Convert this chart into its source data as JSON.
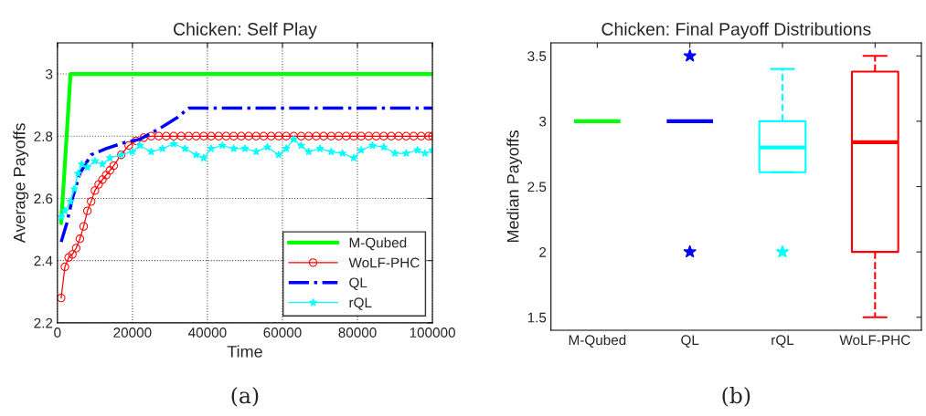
{
  "chart_data": [
    {
      "type": "line",
      "title": "Chicken: Self Play",
      "xlabel": "Time",
      "ylabel": "Average Payoffs",
      "xlim": [
        0,
        100000
      ],
      "xticks": [
        0,
        20000,
        40000,
        60000,
        80000,
        100000
      ],
      "ylim": [
        2.2,
        3.1
      ],
      "yticks": [
        2.2,
        2.4,
        2.6,
        2.8,
        3
      ],
      "grid": true,
      "legend": "bottom right",
      "annotations": [
        "(a)"
      ],
      "series": [
        {
          "name": "M-Qubed",
          "color": "#00ff00",
          "marker": "none",
          "line_style": "solid",
          "x": [
            1000,
            3500,
            100000
          ],
          "values": [
            2.52,
            3.0,
            3.0
          ]
        },
        {
          "name": "WoLF-PHC",
          "color": "#ff0000",
          "marker": "circle",
          "line_style": "solid",
          "x": [
            1000,
            2000,
            3000,
            4000,
            5000,
            6000,
            7000,
            8000,
            9000,
            10000,
            11000,
            12000,
            13000,
            14000,
            15000,
            17000,
            19000,
            21000,
            23000,
            25000,
            27000,
            29000,
            31000,
            33000,
            35000,
            37000,
            39000,
            41000,
            43000,
            45000,
            47000,
            49000,
            51000,
            53000,
            55000,
            57000,
            59000,
            61000,
            63000,
            65000,
            67000,
            69000,
            71000,
            73000,
            75000,
            77000,
            79000,
            81000,
            83000,
            85000,
            87000,
            89000,
            91000,
            93000,
            95000,
            97000,
            99000,
            100000
          ],
          "values": [
            2.28,
            2.38,
            2.41,
            2.42,
            2.44,
            2.47,
            2.51,
            2.56,
            2.59,
            2.625,
            2.645,
            2.66,
            2.675,
            2.69,
            2.705,
            2.74,
            2.77,
            2.785,
            2.795,
            2.8,
            2.8,
            2.8,
            2.8,
            2.8,
            2.8,
            2.8,
            2.8,
            2.8,
            2.8,
            2.8,
            2.8,
            2.8,
            2.8,
            2.8,
            2.8,
            2.8,
            2.8,
            2.8,
            2.8,
            2.8,
            2.8,
            2.8,
            2.8,
            2.8,
            2.8,
            2.8,
            2.8,
            2.8,
            2.8,
            2.8,
            2.8,
            2.8,
            2.8,
            2.8,
            2.8,
            2.8,
            2.8,
            2.8
          ]
        },
        {
          "name": "QL",
          "color": "#0000ff",
          "marker": "none",
          "line_style": "dashdot",
          "x": [
            1000,
            2500,
            4000,
            6000,
            9000,
            13000,
            18000,
            22000,
            28000,
            32000,
            35000,
            100000
          ],
          "values": [
            2.46,
            2.52,
            2.6,
            2.68,
            2.74,
            2.76,
            2.78,
            2.79,
            2.83,
            2.86,
            2.89,
            2.89
          ]
        },
        {
          "name": "rQL",
          "color": "#00ffff",
          "marker": "star",
          "line_style": "solid",
          "x": [
            1000,
            2000,
            3500,
            4500,
            5500,
            6500,
            8000,
            10000,
            12000,
            14000,
            17000,
            20000,
            22000,
            25000,
            28000,
            31000,
            34000,
            37000,
            39000,
            41000,
            44000,
            47000,
            50000,
            53000,
            56000,
            59000,
            61000,
            63000,
            65000,
            67000,
            70000,
            73000,
            76000,
            79000,
            81000,
            84000,
            87000,
            90000,
            93000,
            96000,
            98000,
            100000
          ],
          "values": [
            2.54,
            2.56,
            2.59,
            2.63,
            2.68,
            2.71,
            2.7,
            2.72,
            2.71,
            2.73,
            2.74,
            2.75,
            2.77,
            2.75,
            2.76,
            2.775,
            2.76,
            2.74,
            2.73,
            2.76,
            2.77,
            2.76,
            2.76,
            2.75,
            2.765,
            2.74,
            2.76,
            2.79,
            2.77,
            2.75,
            2.76,
            2.75,
            2.745,
            2.73,
            2.755,
            2.77,
            2.765,
            2.745,
            2.745,
            2.755,
            2.745,
            2.755
          ]
        }
      ]
    },
    {
      "type": "box",
      "title": "Chicken: Final Payoff Distributions",
      "ylabel": "Median Payoffs",
      "categories": [
        "M-Qubed",
        "QL",
        "rQL",
        "WoLF-PHC"
      ],
      "ylim": [
        1.4,
        3.6
      ],
      "yticks": [
        1.5,
        2,
        2.5,
        3,
        3.5
      ],
      "grid": false,
      "marker": "star",
      "annotations": [
        "(b)"
      ],
      "colors": [
        "#00ff00",
        "#0000ff",
        "#00ffff",
        "#ff0000"
      ],
      "boxes": [
        {
          "low": 3.0,
          "q1": 3.0,
          "median": 3.0,
          "q3": 3.0,
          "high": 3.0
        },
        {
          "low": 3.0,
          "q1": 3.0,
          "median": 3.0,
          "q3": 3.0,
          "high": 3.0,
          "outliers": [
            3.5,
            2.0
          ]
        },
        {
          "low": 2.61,
          "q1": 2.61,
          "median": 2.8,
          "q3": 3.0,
          "high": 3.4,
          "outliers": [
            2.0
          ]
        },
        {
          "low": 1.5,
          "q1": 2.0,
          "median": 2.84,
          "q3": 3.38,
          "high": 3.5
        }
      ]
    }
  ]
}
